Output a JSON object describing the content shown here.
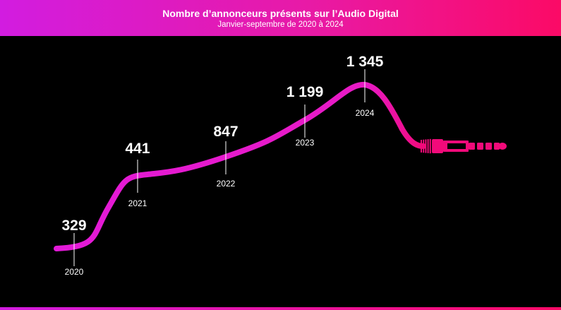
{
  "header": {
    "title": "Nombre d’annonceurs présents sur l’Audio Digital",
    "subtitle": "Janvier-septembre de 2020 à 2024"
  },
  "colors": {
    "line": "#e31ad8",
    "cable_end": "#f20a7a",
    "header_start": "#d21ce0",
    "header_end": "#fb0a66",
    "background": "#000000"
  },
  "chart_data": {
    "type": "line",
    "title": "Nombre d’annonceurs présents sur l’Audio Digital",
    "subtitle": "Janvier-septembre de 2020 à 2024",
    "x": [
      "2020",
      "2021",
      "2022",
      "2023",
      "2024"
    ],
    "series": [
      {
        "values": [
          329,
          441,
          847,
          1199,
          1345
        ],
        "labels": [
          "329",
          "441",
          "847",
          "1 199",
          "1 345"
        ]
      }
    ]
  }
}
